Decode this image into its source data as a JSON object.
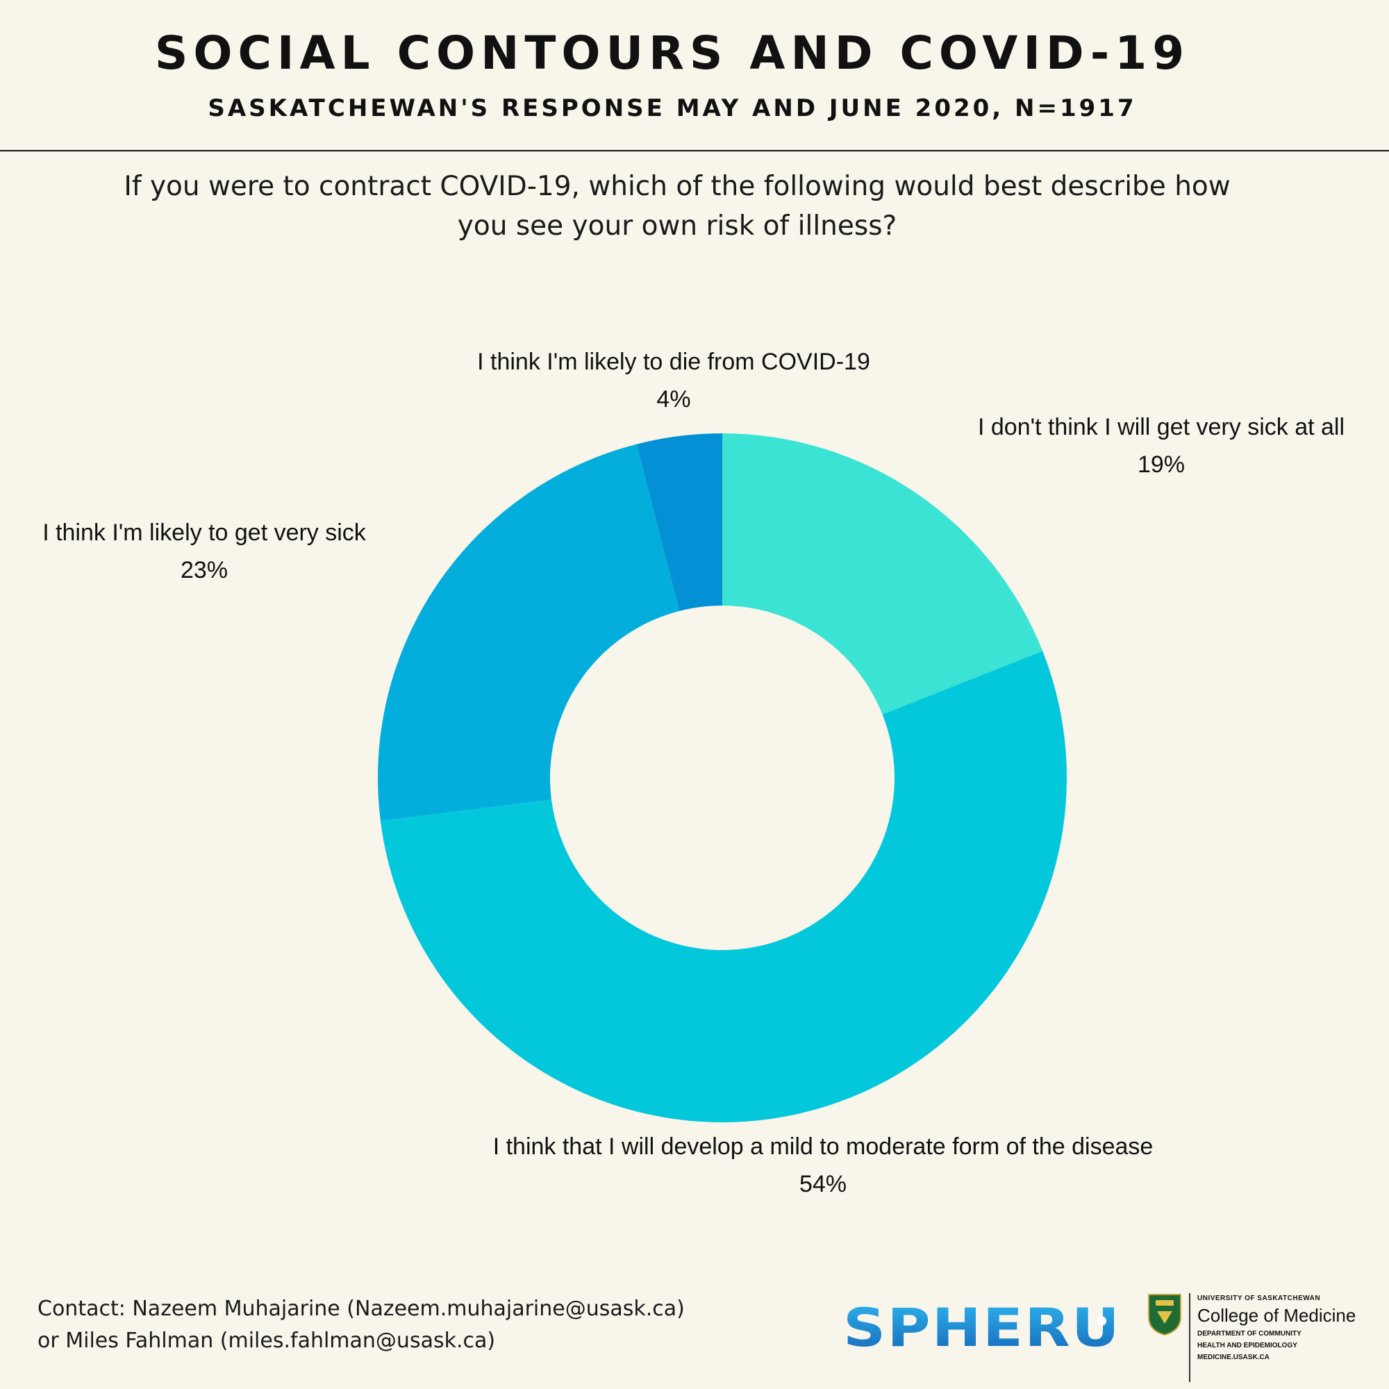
{
  "header": {
    "title": "SOCIAL CONTOURS AND COVID-19",
    "subtitle": "SASKATCHEWAN'S RESPONSE MAY AND JUNE 2020, N=1917"
  },
  "question": {
    "line1": "If you were to contract COVID-19, which of the following would best describe how",
    "line2": "you see your own risk of illness?"
  },
  "chart_data": {
    "type": "pie",
    "donut": true,
    "categories": [
      "I don't think I will get very sick at all",
      "I think that I will develop a mild to moderate form of the disease",
      "I think I'm likely to get very sick",
      "I think I'm likely to die from COVID-19"
    ],
    "values": [
      19,
      54,
      23,
      4
    ],
    "value_labels": [
      "19%",
      "54%",
      "23%",
      "4%"
    ],
    "colors": [
      "#3be3d4",
      "#03c8db",
      "#04aedc",
      "#0390d4"
    ]
  },
  "footer": {
    "contact_line1": "Contact: Nazeem Muhajarine (Nazeem.muhajarine@usask.ca)",
    "contact_line2": "or Miles Fahlman (miles.fahlman@usask.ca)",
    "logo_text": "SPHERU",
    "university": "UNIVERSITY OF SASKATCHEWAN",
    "college": "College of Medicine",
    "department_line1": "DEPARTMENT OF COMMUNITY",
    "department_line2": "HEALTH AND EPIDEMIOLOGY",
    "website": "MEDICINE.USASK.CA"
  }
}
